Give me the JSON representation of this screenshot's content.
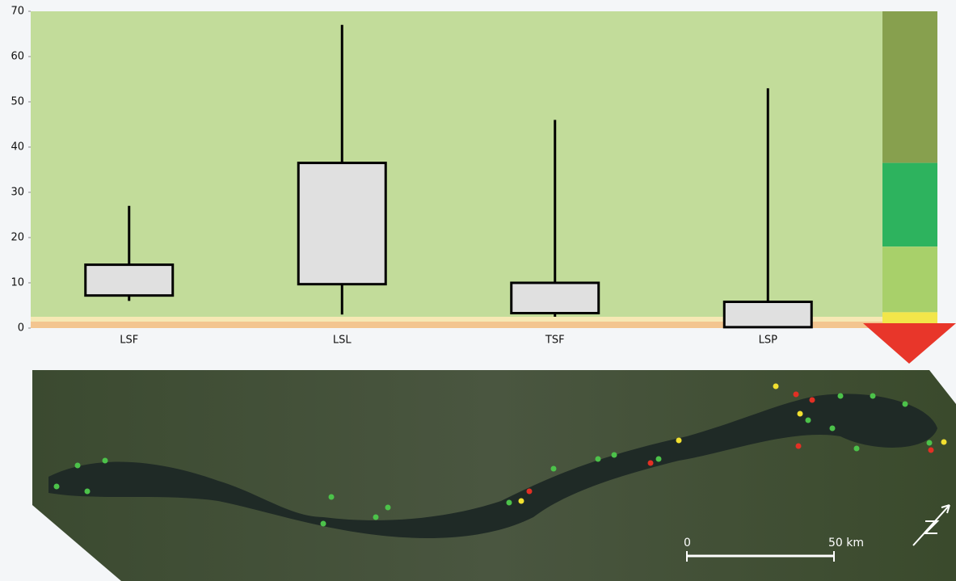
{
  "chart_data": {
    "type": "box",
    "categories": [
      "LSF",
      "LSL",
      "TSF",
      "LSP"
    ],
    "whisker_low": [
      6,
      3,
      2.5,
      0.2
    ],
    "q1": [
      7.2,
      9.7,
      3.3,
      0.2
    ],
    "q3": [
      14,
      36.5,
      10,
      5.8
    ],
    "whisker_high": [
      27,
      67,
      46,
      53
    ],
    "box_color": "#e0e0e0",
    "background": "#c2dc9a",
    "ylim": [
      0,
      70
    ],
    "yticks": [
      0,
      10,
      20,
      30,
      40,
      50,
      60,
      70
    ],
    "zones": [
      {
        "from": 36.5,
        "to": 70,
        "color": "#87a04e"
      },
      {
        "from": 18,
        "to": 36.5,
        "color": "#2db35e"
      },
      {
        "from": 3.5,
        "to": 18,
        "color": "#a8d06a"
      },
      {
        "from": 0.9,
        "to": 3.5,
        "color": "#f2e64a"
      }
    ]
  },
  "map": {
    "scale_labels": [
      "0",
      "50 km"
    ]
  }
}
